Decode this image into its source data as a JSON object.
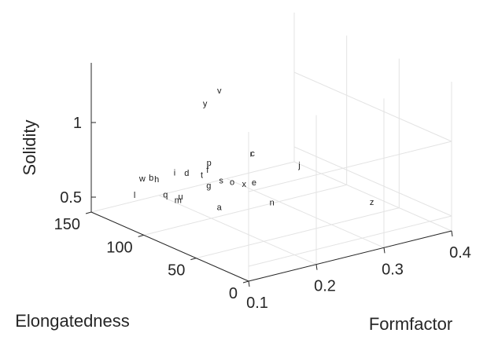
{
  "chart_data": {
    "type": "scatter",
    "projection": "3d",
    "xlabel": "Elongatedness",
    "ylabel": "Formfactor",
    "zlabel": "Solidity",
    "xlim": [
      0,
      150
    ],
    "ylim": [
      0.1,
      0.4
    ],
    "zlim": [
      0.4,
      1.4
    ],
    "xticks": [
      "0",
      "50",
      "100",
      "150"
    ],
    "yticks": [
      "0.1",
      "0.2",
      "0.3",
      "0.4"
    ],
    "zticks": [
      "0.5",
      "1"
    ],
    "grid": true,
    "marker": "text-label",
    "points": [
      {
        "label": "w",
        "x": 140,
        "y": 0.16,
        "z": 0.57
      },
      {
        "label": "b",
        "x": 138,
        "y": 0.17,
        "z": 0.57
      },
      {
        "label": "h",
        "x": 136,
        "y": 0.175,
        "z": 0.56
      },
      {
        "label": "i",
        "x": 135,
        "y": 0.2,
        "z": 0.58
      },
      {
        "label": "d",
        "x": 130,
        "y": 0.21,
        "z": 0.58
      },
      {
        "label": "t",
        "x": 122,
        "y": 0.22,
        "z": 0.58
      },
      {
        "label": "f",
        "x": 123,
        "y": 0.23,
        "z": 0.6
      },
      {
        "label": "p",
        "x": 128,
        "y": 0.24,
        "z": 0.62
      },
      {
        "label": "l",
        "x": 128,
        "y": 0.13,
        "z": 0.53
      },
      {
        "label": "q",
        "x": 118,
        "y": 0.16,
        "z": 0.53
      },
      {
        "label": "m",
        "x": 106,
        "y": 0.16,
        "z": 0.53
      },
      {
        "label": "u",
        "x": 110,
        "y": 0.17,
        "z": 0.53
      },
      {
        "label": "g",
        "x": 109,
        "y": 0.21,
        "z": 0.56
      },
      {
        "label": "s",
        "x": 110,
        "y": 0.23,
        "z": 0.57
      },
      {
        "label": "o",
        "x": 106,
        "y": 0.24,
        "z": 0.56
      },
      {
        "label": "x",
        "x": 101,
        "y": 0.25,
        "z": 0.55
      },
      {
        "label": "e",
        "x": 98,
        "y": 0.26,
        "z": 0.56
      },
      {
        "label": "a",
        "x": 86,
        "y": 0.19,
        "z": 0.51
      },
      {
        "label": "n",
        "x": 68,
        "y": 0.24,
        "z": 0.54
      },
      {
        "label": "r",
        "x": 120,
        "y": 0.29,
        "z": 0.65
      },
      {
        "label": "c",
        "x": 120,
        "y": 0.292,
        "z": 0.65
      },
      {
        "label": "j",
        "x": 100,
        "y": 0.33,
        "z": 0.59
      },
      {
        "label": "z",
        "x": 47,
        "y": 0.355,
        "z": 0.48
      },
      {
        "label": "v",
        "x": 144,
        "y": 0.28,
        "z": 1.01
      },
      {
        "label": "y",
        "x": 148,
        "y": 0.265,
        "z": 0.93
      }
    ]
  }
}
